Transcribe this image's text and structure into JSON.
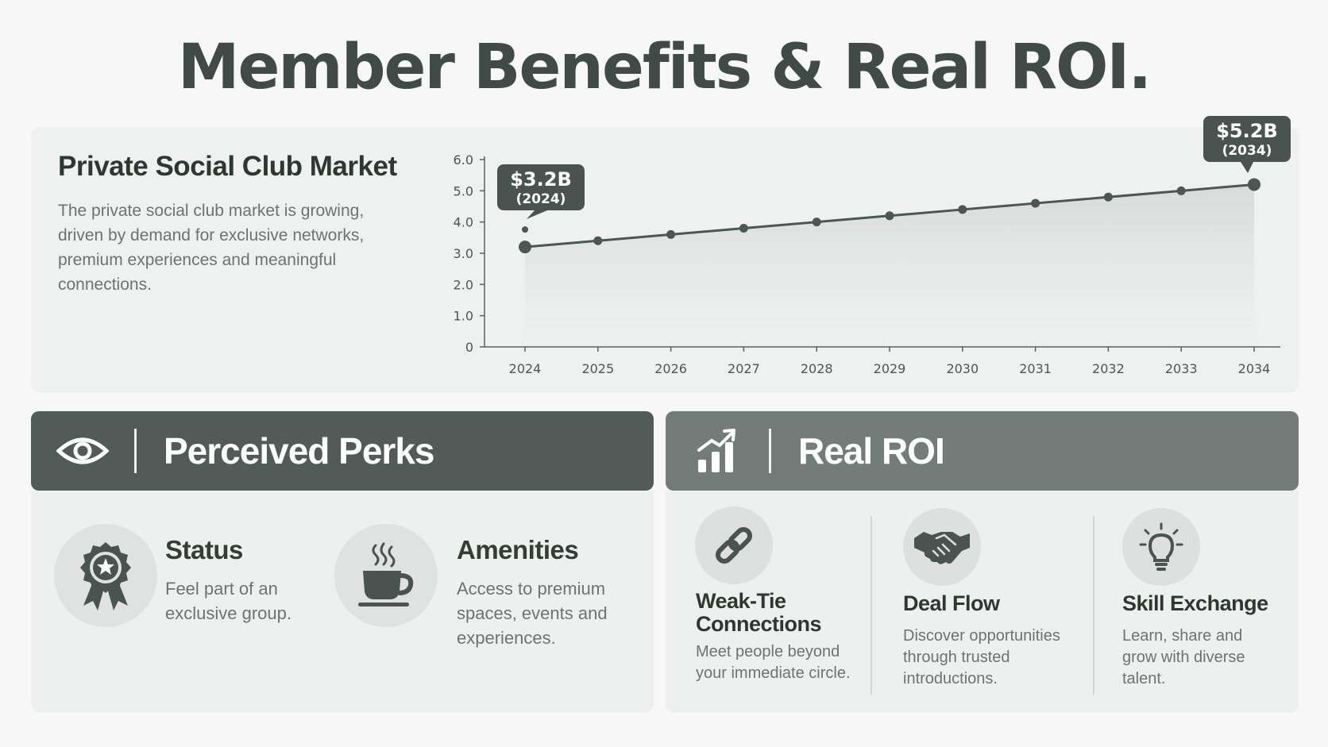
{
  "title": "Member Benefits & Real ROI.",
  "market": {
    "title": "Private Social Club Market",
    "description": "The private social club market is growing, driven by demand for exclusive networks, premium experiences and meaningful connections."
  },
  "chart_data": {
    "type": "area",
    "x": [
      "2024",
      "2025",
      "2026",
      "2027",
      "2028",
      "2029",
      "2030",
      "2031",
      "2032",
      "2033",
      "2034"
    ],
    "values": [
      3.2,
      3.4,
      3.6,
      3.8,
      4.0,
      4.2,
      4.4,
      4.6,
      4.8,
      5.0,
      5.2
    ],
    "y_ticks": [
      "0",
      "1.0",
      "2.0",
      "3.0",
      "4.0",
      "5.0",
      "6.0"
    ],
    "ylim": [
      0,
      6
    ],
    "grid": false,
    "callouts": [
      {
        "value": "$3.2B",
        "year": "(2024)"
      },
      {
        "value": "$5.2B",
        "year": "(2034)"
      }
    ],
    "colors": {
      "line": "#4d5652",
      "fill": "#dde1df"
    }
  },
  "perks": {
    "header": "Perceived Perks",
    "header_icon": "eye-icon",
    "items": [
      {
        "title": "Status",
        "description_lines": [
          "Feel part of an",
          "exclusive group."
        ],
        "icon": "rosette-star-icon"
      },
      {
        "title": "Amenities",
        "description_lines": [
          "Access to premium",
          "spaces, events and",
          "experiences."
        ],
        "icon": "coffee-cup-icon"
      }
    ]
  },
  "roi": {
    "header": "Real ROI",
    "header_icon": "growth-chart-icon",
    "items": [
      {
        "title_lines": [
          "Weak-Tie",
          "Connections"
        ],
        "description_lines": [
          "Meet people beyond",
          "your immediate circle."
        ],
        "icon": "chain-link-icon"
      },
      {
        "title_lines": [
          "Deal Flow"
        ],
        "description_lines": [
          "Discover opportunities",
          "through trusted",
          "introductions."
        ],
        "icon": "handshake-icon"
      },
      {
        "title_lines": [
          "Skill Exchange"
        ],
        "description_lines": [
          "Learn, share and",
          "grow with diverse",
          "talent."
        ],
        "icon": "lightbulb-icon"
      }
    ]
  },
  "colors": {
    "perks_header_bg": "#525b57",
    "roi_header_bg": "#737c78",
    "card_bg": "#eff1f0",
    "accent": "#4d5652"
  }
}
